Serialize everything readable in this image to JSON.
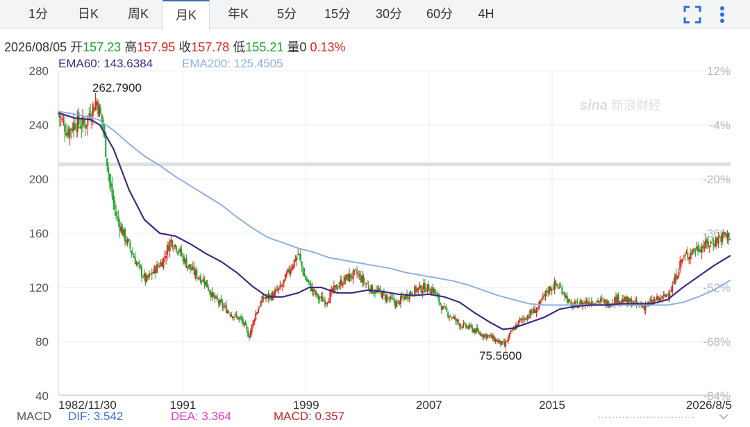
{
  "tabs": [
    {
      "label": "1分",
      "active": false
    },
    {
      "label": "日K",
      "active": false
    },
    {
      "label": "周K",
      "active": false
    },
    {
      "label": "月K",
      "active": true
    },
    {
      "label": "年K",
      "active": false
    },
    {
      "label": "5分",
      "active": false
    },
    {
      "label": "15分",
      "active": false
    },
    {
      "label": "30分",
      "active": false
    },
    {
      "label": "60分",
      "active": false
    },
    {
      "label": "4H",
      "active": false
    }
  ],
  "toolbar": {
    "fullscreen_icon": "fullscreen-icon",
    "more_icon": "more-vertical-icon"
  },
  "quote": {
    "date": "2026/08/05",
    "open_label": "开",
    "open": "157.23",
    "high_label": "高",
    "high": "157.95",
    "close_label": "收",
    "close": "157.78",
    "low_label": "低",
    "low": "155.21",
    "volume_label": "量",
    "volume": "0",
    "change": "0.13%"
  },
  "indicators": {
    "ema60": "EMA60: 143.6384",
    "ema200": "EMA200: 125.4505",
    "macd_label": "MACD",
    "dif": "DIF: 3.542",
    "dea": "DEA: 3.364",
    "macd": "MACD: 0.357"
  },
  "watermark": {
    "brand": "新浪财经"
  },
  "colors": {
    "up": "#e2231a",
    "down": "#1aa32a",
    "ema60": "#3d2a80",
    "ema200": "#8fb0e0",
    "dif": "#3b6fd6",
    "dea": "#e040c8",
    "macd": "#c0282e",
    "grid": "#e9ecef"
  },
  "chart_data": {
    "type": "candlestick",
    "x_tick_labels": [
      "1982/11/30",
      "1991",
      "1999",
      "2007",
      "2015",
      "2026/8/5"
    ],
    "x_tick_years": [
      1982.9,
      1991,
      1999,
      2007,
      2015,
      2026.6
    ],
    "x_range": [
      1982.9,
      2026.6
    ],
    "y_ticks": [
      280,
      240,
      200,
      160,
      120,
      80,
      40
    ],
    "ylim": [
      40,
      280
    ],
    "right_axis_ticks": [
      "12%",
      "-4%",
      "-20%",
      "-36%",
      "-52%",
      "-68%",
      "-84%"
    ],
    "right_axis_values": [
      12,
      -4,
      -20,
      -36,
      -52,
      -68,
      -84
    ],
    "annotations": [
      {
        "label": "262.7900",
        "x": 1985.4,
        "y": 262.79
      },
      {
        "label": "75.5600",
        "x": 2011.8,
        "y": 75.56
      }
    ],
    "reference_line_y": 211,
    "price_path": {
      "x": [
        1982.9,
        1983.5,
        1984,
        1984.6,
        1985,
        1985.4,
        1985.8,
        1986.2,
        1986.6,
        1987.1,
        1987.6,
        1988.1,
        1988.6,
        1989.1,
        1989.7,
        1990.2,
        1990.6,
        1991.2,
        1991.8,
        1992.4,
        1993,
        1993.6,
        1994.2,
        1994.8,
        1995.3,
        1995.7,
        1996.2,
        1996.8,
        1997.4,
        1998,
        1998.5,
        1998.9,
        1999.3,
        1999.8,
        2000.3,
        2000.8,
        2001.3,
        2001.8,
        2002.3,
        2002.8,
        2003.3,
        2003.8,
        2004.3,
        2004.9,
        2005.5,
        2006.1,
        2006.7,
        2007.3,
        2007.9,
        2008.5,
        2009.1,
        2009.7,
        2010.3,
        2010.9,
        2011.5,
        2011.9,
        2012.4,
        2012.9,
        2013.5,
        2014.1,
        2014.7,
        2015.2,
        2015.7,
        2016.2,
        2016.8,
        2017.4,
        2018,
        2018.6,
        2019.2,
        2019.8,
        2020.4,
        2021,
        2021.6,
        2022.2,
        2022.8,
        2023.4,
        2024,
        2024.6,
        2025.2,
        2025.7,
        2026.2,
        2026.6
      ],
      "close": [
        248,
        235,
        242,
        240,
        250,
        258,
        240,
        200,
        175,
        160,
        148,
        135,
        125,
        132,
        140,
        155,
        150,
        138,
        130,
        125,
        112,
        106,
        100,
        96,
        84,
        100,
        112,
        114,
        120,
        135,
        145,
        128,
        120,
        112,
        110,
        118,
        124,
        128,
        130,
        124,
        118,
        116,
        112,
        108,
        114,
        118,
        120,
        118,
        104,
        98,
        92,
        90,
        86,
        84,
        80,
        77,
        88,
        95,
        100,
        105,
        118,
        122,
        118,
        106,
        108,
        110,
        110,
        108,
        112,
        110,
        108,
        106,
        110,
        112,
        120,
        140,
        146,
        150,
        152,
        155,
        158,
        157.78
      ]
    },
    "ema60": {
      "x": [
        1982.9,
        1984,
        1985,
        1985.6,
        1986.5,
        1987.5,
        1988.5,
        1989.5,
        1990.5,
        1991.5,
        1992.5,
        1993.5,
        1994.5,
        1995.5,
        1996.5,
        1997.5,
        1998.5,
        1999.2,
        2000,
        2001,
        2002,
        2003,
        2004,
        2005,
        2006,
        2007,
        2008,
        2009,
        2010,
        2011,
        2011.8,
        2012.5,
        2013.5,
        2014.5,
        2015.5,
        2016.5,
        2017.5,
        2018.5,
        2019.5,
        2020.5,
        2021.5,
        2022.5,
        2023.5,
        2024.5,
        2025.5,
        2026.6
      ],
      "y": [
        249,
        245,
        244,
        240,
        222,
        192,
        170,
        160,
        158,
        152,
        145,
        139,
        131,
        121,
        113,
        113,
        116,
        120,
        120,
        116,
        116,
        118,
        117,
        115,
        114,
        115,
        113,
        109,
        101,
        94,
        89,
        90,
        94,
        98,
        104,
        106,
        107,
        107,
        108,
        108,
        108,
        111,
        120,
        128,
        136,
        143.6
      ]
    },
    "ema200": {
      "x": [
        1982.9,
        1984,
        1985.5,
        1986.5,
        1987.5,
        1988.5,
        1989.5,
        1990.5,
        1991.5,
        1992.5,
        1993.5,
        1994.5,
        1995.5,
        1996.5,
        1997.5,
        1998.5,
        1999.5,
        2000.5,
        2001.5,
        2002.5,
        2003.5,
        2004.5,
        2005.5,
        2006.5,
        2007.5,
        2008.5,
        2009.5,
        2010.5,
        2011.5,
        2012.5,
        2013.5,
        2014.5,
        2015.5,
        2016.5,
        2017.5,
        2018.5,
        2019.5,
        2020.5,
        2021.5,
        2022.5,
        2023.5,
        2024.5,
        2025.5,
        2026.6
      ],
      "y": [
        250,
        248,
        244,
        236,
        226,
        217,
        210,
        202,
        195,
        188,
        181,
        172,
        164,
        157,
        153,
        149,
        146,
        142,
        140,
        138,
        136,
        134,
        131,
        129,
        127,
        125,
        122,
        118,
        114,
        111,
        108,
        107,
        107,
        107,
        107,
        107,
        107,
        107,
        107,
        107,
        109,
        113,
        118,
        125.45
      ]
    }
  }
}
